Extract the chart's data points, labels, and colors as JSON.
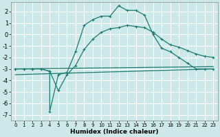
{
  "xlabel": "Humidex (Indice chaleur)",
  "background_color": "#cce8e8",
  "grid_color": "#ffffff",
  "line_color": "#1a7a6e",
  "xlim": [
    -0.5,
    23.5
  ],
  "ylim": [
    -7.5,
    2.8
  ],
  "xticks": [
    0,
    1,
    2,
    3,
    4,
    5,
    6,
    7,
    8,
    9,
    10,
    11,
    12,
    13,
    14,
    15,
    16,
    17,
    18,
    19,
    20,
    21,
    22,
    23
  ],
  "yticks": [
    -7,
    -6,
    -5,
    -4,
    -3,
    -2,
    -1,
    0,
    1,
    2
  ],
  "series1_x": [
    0,
    1,
    2,
    3,
    4,
    4,
    5,
    6,
    7,
    8,
    9,
    10,
    11,
    12,
    13,
    14,
    15,
    16,
    17,
    18,
    19,
    20,
    21,
    22,
    23
  ],
  "series1_y": [
    -3,
    -3,
    -3,
    -3,
    -3.2,
    -6.7,
    -3.5,
    -3.3,
    -1.5,
    0.8,
    1.3,
    1.6,
    1.6,
    2.5,
    2.1,
    2.1,
    1.7,
    0.0,
    -1.2,
    -1.5,
    -2.0,
    -2.5,
    -3.0,
    -3.0,
    -3.0
  ],
  "series2_x": [
    0,
    1,
    2,
    3,
    4,
    5,
    6,
    7,
    8,
    9,
    10,
    11,
    12,
    13,
    14,
    15,
    16,
    17,
    18,
    19,
    20,
    21,
    22,
    23
  ],
  "series2_y": [
    -3,
    -3,
    -3,
    -3,
    -3.2,
    -4.9,
    -3.5,
    -2.7,
    -1.3,
    -0.4,
    0.2,
    0.5,
    0.6,
    0.8,
    0.7,
    0.6,
    0.2,
    -0.4,
    -0.9,
    -1.1,
    -1.4,
    -1.7,
    -1.9,
    -2.0
  ],
  "series3_x": [
    0,
    23
  ],
  "series3_y": [
    -3.0,
    -2.8
  ],
  "series4_x": [
    0,
    23
  ],
  "series4_y": [
    -3.5,
    -3.0
  ]
}
